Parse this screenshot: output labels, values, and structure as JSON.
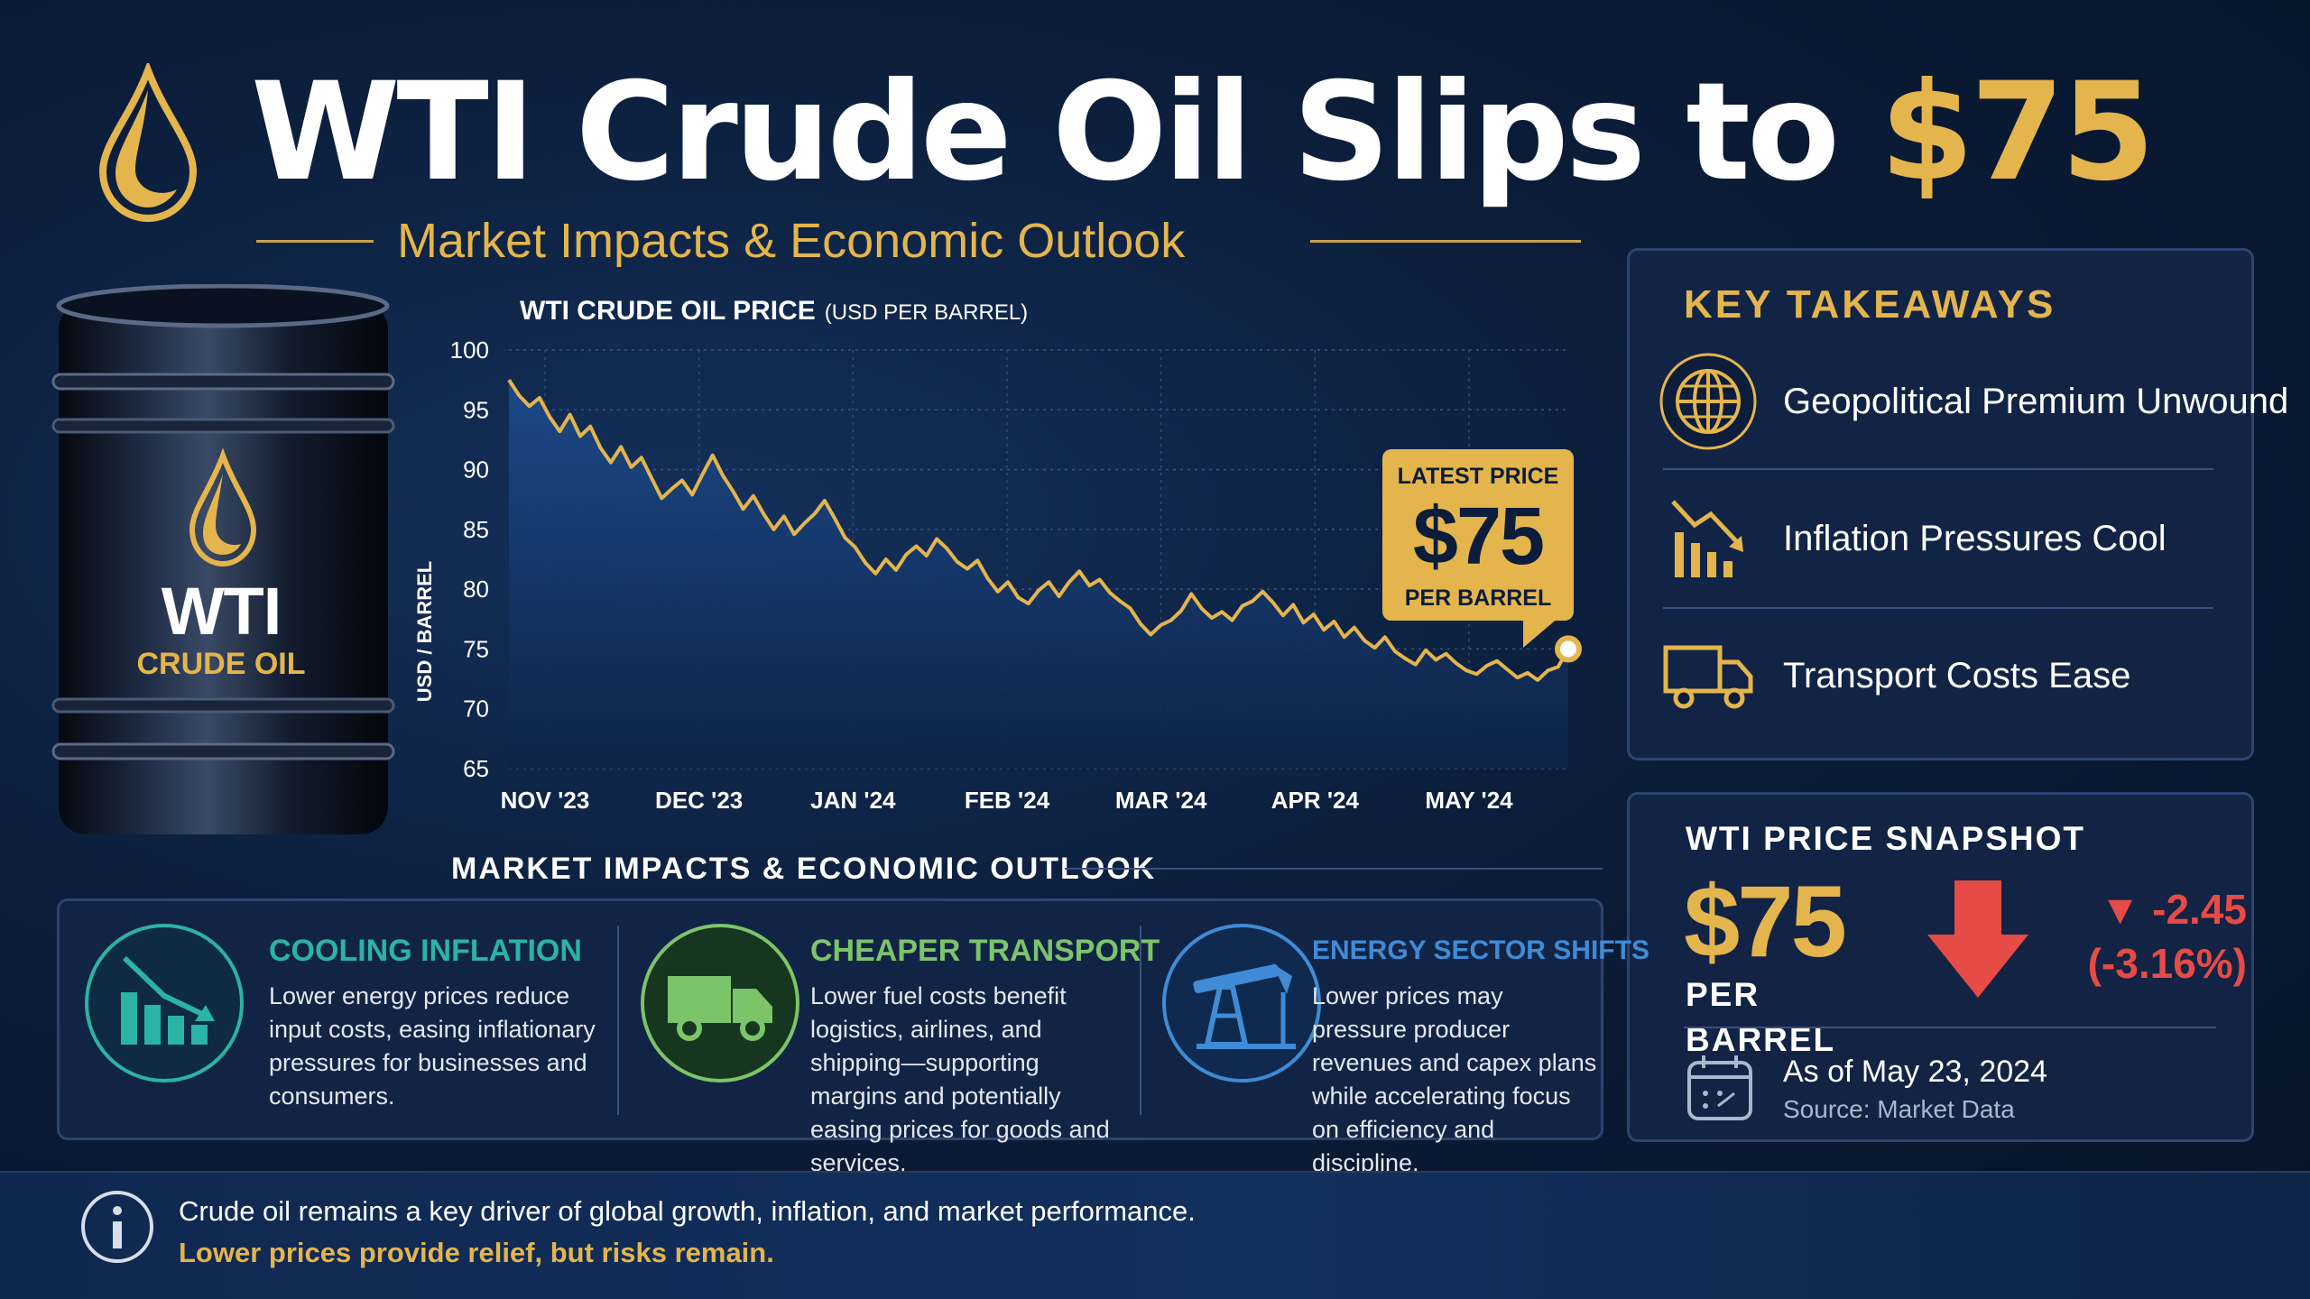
{
  "header": {
    "title_main": "WTI Crude Oil Slips to ",
    "title_accent": "$75",
    "subtitle": "Market Impacts & Economic Outlook"
  },
  "barrel": {
    "brand": "WTI",
    "label": "CRUDE OIL"
  },
  "chart_data": {
    "type": "area",
    "title": "WTI CRUDE OIL PRICE",
    "title_unit": "(USD PER BARREL)",
    "ylabel": "USD / BARREL",
    "xlabel": "",
    "ylim": [
      65,
      100
    ],
    "yticks": [
      100,
      95,
      90,
      85,
      80,
      75,
      70,
      65
    ],
    "x_tick_labels": [
      "NOV '23",
      "DEC '23",
      "JAN '24",
      "FEB '24",
      "MAR '24",
      "APR '24",
      "MAY '24"
    ],
    "grid": true,
    "series": [
      {
        "values": [
          97.5,
          96.2,
          95.3,
          96.0,
          94.4,
          93.2,
          94.6,
          92.8,
          93.6,
          91.8,
          90.6,
          91.9,
          90.2,
          91.0,
          89.3,
          87.6,
          88.4,
          89.1,
          87.9,
          89.6,
          91.2,
          89.5,
          88.2,
          86.7,
          87.8,
          86.3,
          85.0,
          86.1,
          84.6,
          85.5,
          86.3,
          87.4,
          85.9,
          84.3,
          83.5,
          82.2,
          81.3,
          82.5,
          81.6,
          82.9,
          83.6,
          82.8,
          84.2,
          83.4,
          82.3,
          81.7,
          82.4,
          80.9,
          79.8,
          80.6,
          79.3,
          78.8,
          79.9,
          80.6,
          79.4,
          80.6,
          81.5,
          80.3,
          80.8,
          79.7,
          79.0,
          78.4,
          77.1,
          76.2,
          77.0,
          77.4,
          78.2,
          79.6,
          78.4,
          77.6,
          78.1,
          77.4,
          78.6,
          79.0,
          79.8,
          78.9,
          77.8,
          78.7,
          77.2,
          77.9,
          76.6,
          77.3,
          76.0,
          76.8,
          75.7,
          75.1,
          76.0,
          74.8,
          74.2,
          73.7,
          74.9,
          74.1,
          74.6,
          73.8,
          73.2,
          72.9,
          73.6,
          74.0,
          73.3,
          72.6,
          73.0,
          72.4,
          73.2,
          73.5,
          75.0
        ]
      }
    ],
    "annotation": {
      "line1": "LATEST PRICE",
      "value": "$75",
      "line3": "PER BARREL"
    },
    "colors": {
      "line": "#e4b54c",
      "area_top": "#1d4a8a",
      "area_bottom": "#0d2447",
      "grid": "#3a5180"
    }
  },
  "takeaways": {
    "title": "KEY TAKEAWAYS",
    "items": [
      {
        "icon": "globe-icon",
        "label": "Geopolitical Premium Unwound"
      },
      {
        "icon": "declining-bars-icon",
        "label": "Inflation Pressures Cool"
      },
      {
        "icon": "truck-icon",
        "label": "Transport Costs Ease"
      }
    ]
  },
  "snapshot": {
    "title": "WTI PRICE SNAPSHOT",
    "price": "$75",
    "unit": "PER BARREL",
    "change": "▼ -2.45",
    "change_pct": "(-3.16%)",
    "date": "As of May 23, 2024",
    "source": "Source: Market Data",
    "icon": "calendar-icon",
    "color_down": "#e64b45"
  },
  "impacts": {
    "heading": "MARKET IMPACTS & ECONOMIC OUTLOOK",
    "cards": [
      {
        "icon": "inflation-down-icon",
        "title": "COOLING INFLATION",
        "color": "#2bb3a5",
        "text": "Lower energy prices reduce input costs, easing inflationary pressures for businesses and consumers."
      },
      {
        "icon": "truck-icon",
        "title": "CHEAPER TRANSPORT",
        "color": "#7cc46a",
        "text": "Lower fuel costs benefit logistics, airlines, and shipping—supporting margins and potentially easing prices for goods and services."
      },
      {
        "icon": "oil-pump-icon",
        "title": "ENERGY SECTOR SHIFTS",
        "color": "#3f8bd6",
        "text": "Lower prices may pressure producer revenues and capex plans while accelerating focus on efficiency and discipline."
      }
    ]
  },
  "footer": {
    "icon": "info-icon",
    "line1": "Crude oil remains a key driver of global growth, inflation, and market performance.",
    "line2": "Lower prices provide relief, but risks remain."
  },
  "colors": {
    "gold": "#e4b54c",
    "navy": "#0b1d3a",
    "red": "#e64b45"
  }
}
